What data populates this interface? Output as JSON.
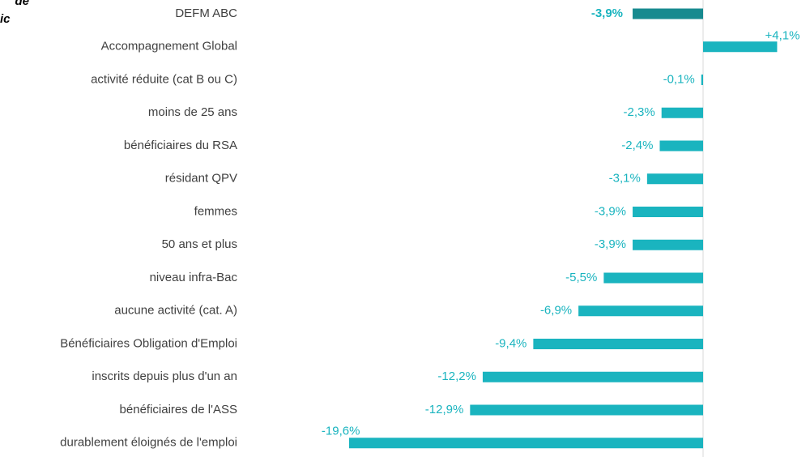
{
  "chart_data": {
    "type": "barh",
    "annotations": [
      "de",
      "ic"
    ],
    "categories": [
      "DEFM ABC",
      "Accompagnement Global",
      "activité réduite (cat B ou C)",
      "moins de 25 ans",
      "bénéficiaires du RSA",
      "résidant QPV",
      "femmes",
      "50 ans et plus",
      "niveau infra-Bac",
      "aucune activité (cat. A)",
      "Bénéficiaires Obligation d'Emploi",
      "inscrits depuis plus d'un an",
      "bénéficiaires de l'ASS",
      "durablement éloignés de l'emploi"
    ],
    "values": [
      -3.9,
      4.1,
      -0.1,
      -2.3,
      -2.4,
      -3.1,
      -3.9,
      -3.9,
      -5.5,
      -6.9,
      -9.4,
      -12.2,
      -12.9,
      -19.6
    ],
    "value_labels": [
      "-3,9%",
      "+4,1%",
      "-0,1%",
      "-2,3%",
      "-2,4%",
      "-3,1%",
      "-3,9%",
      "-3,9%",
      "-5,5%",
      "-6,9%",
      "-9,4%",
      "-12,2%",
      "-12,9%",
      "-19,6%"
    ],
    "colors": [
      "#178a8f",
      "#1ab4bf",
      "#1ab4bf",
      "#1ab4bf",
      "#1ab4bf",
      "#1ab4bf",
      "#1ab4bf",
      "#1ab4bf",
      "#1ab4bf",
      "#1ab4bf",
      "#1ab4bf",
      "#1ab4bf",
      "#1ab4bf",
      "#1ab4bf"
    ],
    "label_color": "#1ab4bf",
    "xlim": [
      -20,
      5
    ]
  }
}
